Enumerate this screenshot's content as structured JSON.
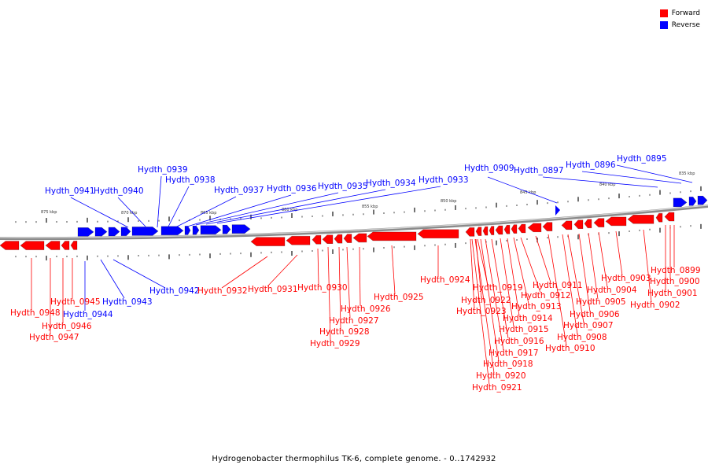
{
  "legend": {
    "forward_label": "Forward",
    "reverse_label": "Reverse",
    "forward_color": "#ff0000",
    "reverse_color": "#0000ff"
  },
  "caption": "Hydrogenobacter thermophilus TK-6, complete genome. - 0..1742932",
  "scale_labels": [
    "875 kbp",
    "870 kbp",
    "865 kbp",
    "860 kbp",
    "855 kbp",
    "850 kbp",
    "845 kbp",
    "840 kbp",
    "835 kbp"
  ],
  "reverse_genes": [
    "Hydth_0895",
    "Hydth_0896",
    "Hydth_0897",
    "Hydth_0909",
    "Hydth_0933",
    "Hydth_0934",
    "Hydth_0935",
    "Hydth_0936",
    "Hydth_0937",
    "Hydth_0938",
    "Hydth_0939",
    "Hydth_0940",
    "Hydth_0941",
    "Hydth_0942",
    "Hydth_0943",
    "Hydth_0944"
  ],
  "forward_genes": [
    "Hydth_0899",
    "Hydth_0900",
    "Hydth_0901",
    "Hydth_0902",
    "Hydth_0903",
    "Hydth_0904",
    "Hydth_0905",
    "Hydth_0906",
    "Hydth_0907",
    "Hydth_0908",
    "Hydth_0910",
    "Hydth_0911",
    "Hydth_0912",
    "Hydth_0913",
    "Hydth_0914",
    "Hydth_0915",
    "Hydth_0916",
    "Hydth_0917",
    "Hydth_0918",
    "Hydth_0919",
    "Hydth_0920",
    "Hydth_0921",
    "Hydth_0922",
    "Hydth_0923",
    "Hydth_0924",
    "Hydth_0925",
    "Hydth_0926",
    "Hydth_0927",
    "Hydth_0928",
    "Hydth_0929",
    "Hydth_0930",
    "Hydth_0931",
    "Hydth_0932",
    "Hydth_0945",
    "Hydth_0946",
    "Hydth_0947",
    "Hydth_0948"
  ]
}
